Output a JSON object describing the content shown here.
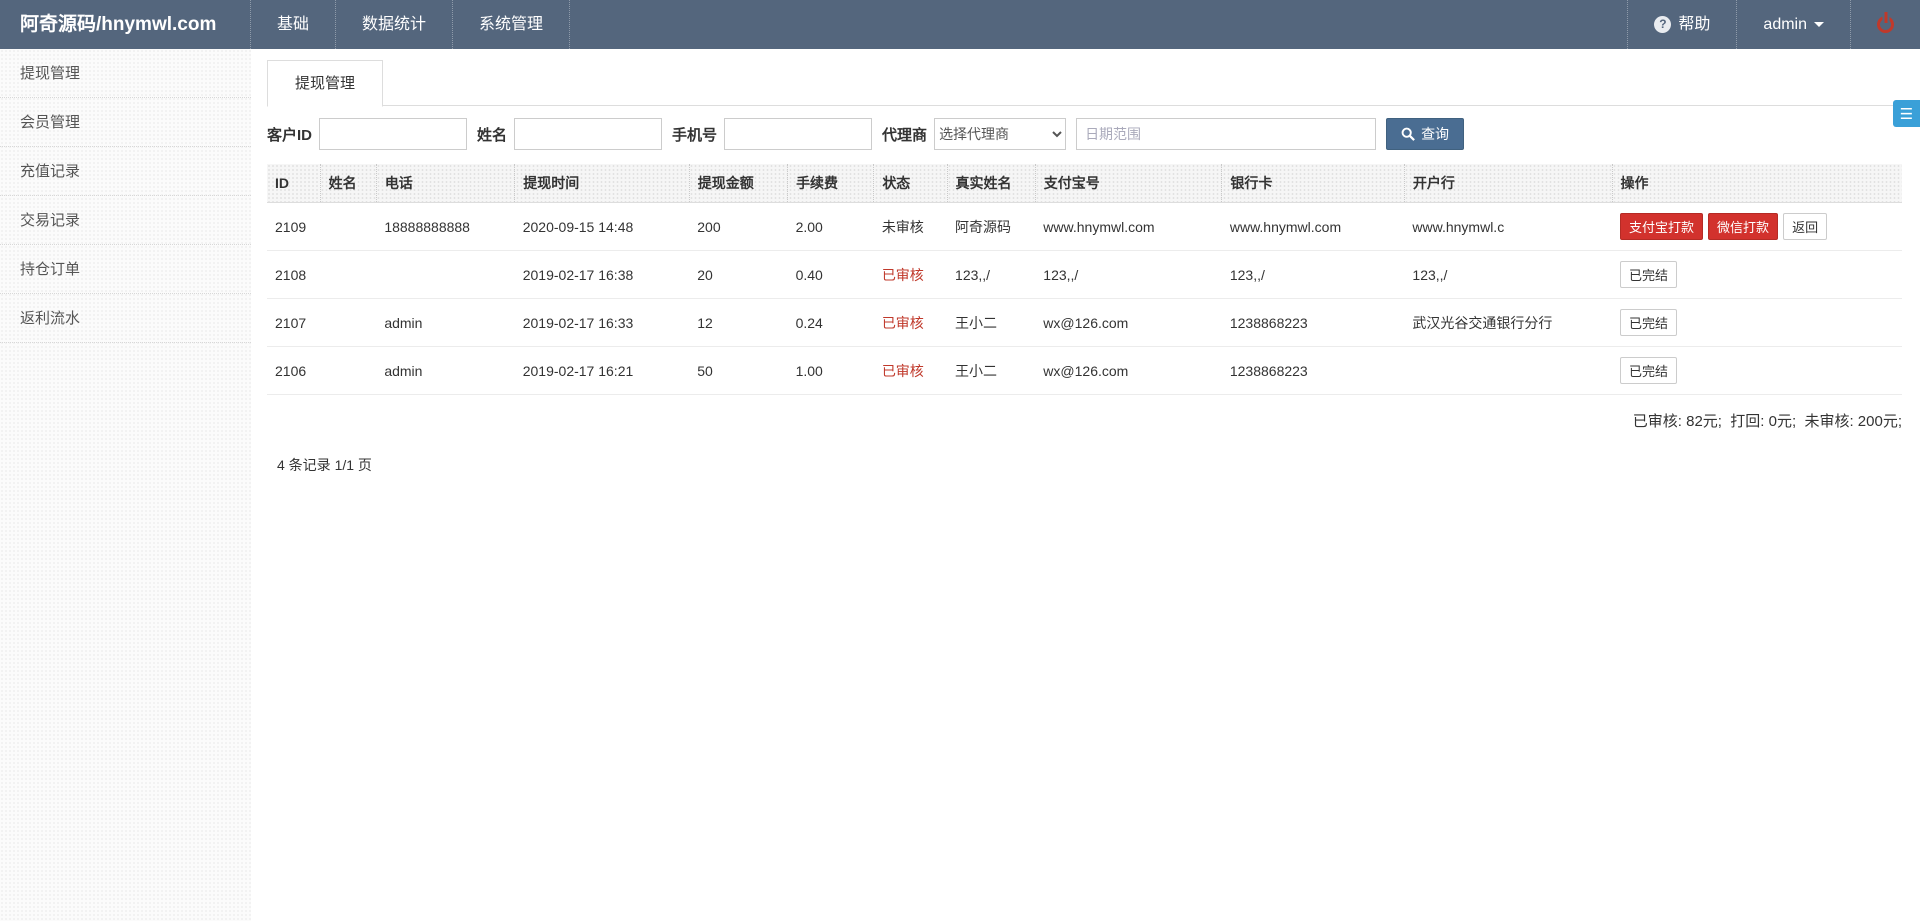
{
  "navbar": {
    "logo": "阿奇源码/hnymwl.com",
    "menu": [
      {
        "label": "基础"
      },
      {
        "label": "数据统计"
      },
      {
        "label": "系统管理"
      }
    ],
    "help_label": "帮助",
    "user_label": "admin"
  },
  "sidebar": {
    "items": [
      {
        "label": "提现管理"
      },
      {
        "label": "会员管理"
      },
      {
        "label": "充值记录"
      },
      {
        "label": "交易记录"
      },
      {
        "label": "持仓订单"
      },
      {
        "label": "返利流水"
      }
    ]
  },
  "main": {
    "tab": "提现管理",
    "search": {
      "fields": [
        {
          "label": "客户ID",
          "value": ""
        },
        {
          "label": "姓名",
          "value": ""
        },
        {
          "label": "手机号",
          "value": ""
        }
      ],
      "agent_label": "代理商",
      "agent_selected": "选择代理商",
      "date_placeholder": "日期范围",
      "query_label": "查询"
    },
    "table": {
      "columns": [
        "ID",
        "姓名",
        "电话",
        "提现时间",
        "提现金额",
        "手续费",
        "状态",
        "真实姓名",
        "支付宝号",
        "银行卡",
        "开户行",
        "操作"
      ],
      "rows": [
        {
          "id": "2109",
          "name": "",
          "phone": "18888888888",
          "time": "2020-09-15 14:48",
          "amount": "200",
          "fee": "2.00",
          "status": "未审核",
          "status_type": "pending",
          "real_name": "阿奇源码",
          "alipay": "www.hnymwl.com",
          "bank_card": "www.hnymwl.com",
          "bank_branch": "www.hnymwl.c",
          "actions": [
            {
              "label": "支付宝打款",
              "style": "danger"
            },
            {
              "label": "微信打款",
              "style": "danger"
            },
            {
              "label": "返回",
              "style": "default"
            }
          ]
        },
        {
          "id": "2108",
          "name": "",
          "phone": "",
          "time": "2019-02-17 16:38",
          "amount": "20",
          "fee": "0.40",
          "status": "已审核",
          "status_type": "approved",
          "real_name": "123,,/",
          "alipay": "123,,/",
          "bank_card": "123,,/",
          "bank_branch": "123,,/",
          "actions": [
            {
              "label": "已完结",
              "style": "default"
            }
          ]
        },
        {
          "id": "2107",
          "name": "",
          "phone": "admin",
          "time": "2019-02-17 16:33",
          "amount": "12",
          "fee": "0.24",
          "status": "已审核",
          "status_type": "approved",
          "real_name": "王小二",
          "alipay": "wx@126.com",
          "bank_card": "1238868223",
          "bank_branch": "武汉光谷交通银行分行",
          "actions": [
            {
              "label": "已完结",
              "style": "default"
            }
          ]
        },
        {
          "id": "2106",
          "name": "",
          "phone": "admin",
          "time": "2019-02-17 16:21",
          "amount": "50",
          "fee": "1.00",
          "status": "已审核",
          "status_type": "approved",
          "real_name": "王小二",
          "alipay": "wx@126.com",
          "bank_card": "1238868223",
          "bank_branch": "",
          "actions": [
            {
              "label": "已完结",
              "style": "default"
            }
          ]
        }
      ],
      "summary": "已审核: 82元;  打回: 0元;  未审核: 200元;",
      "pagination": "4 条记录 1/1 页"
    }
  },
  "colors": {
    "navbar": "#54667d",
    "accent_button": "#4a6d92",
    "danger_button": "#d2322d",
    "status_red": "#c0392b",
    "theme_toggle": "#3aa0d8"
  }
}
